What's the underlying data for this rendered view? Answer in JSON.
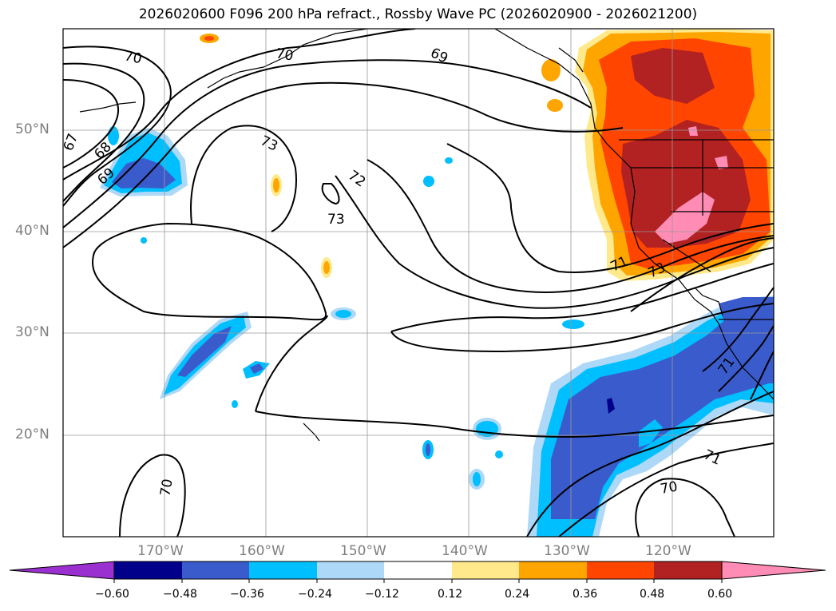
{
  "title": "2026020600 F096 200 hPa refract., Rossby Wave PC (2026020900 - 2026021200)",
  "map": {
    "lat_labels": [
      "50°N",
      "40°N",
      "30°N",
      "20°N"
    ],
    "lon_labels": [
      "170°W",
      "160°W",
      "150°W",
      "140°W",
      "130°W",
      "120°W"
    ],
    "contour_labels": [
      "70",
      "70",
      "69",
      "67",
      "68",
      "69",
      "73",
      "72",
      "73",
      "71",
      "73",
      "71",
      "71",
      "70",
      "70"
    ],
    "shading": "refractive index / Rossby wave phase-speed anomaly (filled)",
    "contours": "refractive index (black lines)"
  },
  "colorbar": {
    "ticks": [
      "−0.60",
      "−0.48",
      "−0.36",
      "−0.24",
      "−0.12",
      "0.12",
      "0.24",
      "0.36",
      "0.48",
      "0.60"
    ],
    "colors": [
      "#9b30d0",
      "#00008b",
      "#3a5bcc",
      "#00bfff",
      "#add8f7",
      "#ffffff",
      "#ffe98a",
      "#ffa500",
      "#ff4500",
      "#b22222",
      "#ff8cb4"
    ]
  }
}
